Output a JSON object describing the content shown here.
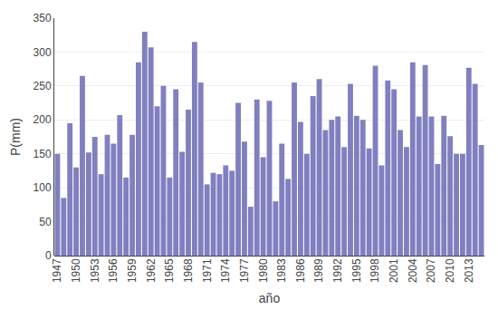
{
  "chart_data": {
    "type": "bar",
    "categories": [
      1947,
      null,
      null,
      1950,
      null,
      null,
      1953,
      null,
      null,
      1956,
      null,
      null,
      1959,
      null,
      null,
      1962,
      null,
      null,
      1965,
      null,
      null,
      1968,
      null,
      null,
      1971,
      null,
      null,
      1974,
      null,
      null,
      1977,
      null,
      null,
      1980,
      null,
      null,
      1983,
      null,
      null,
      1986,
      null,
      null,
      1989,
      null,
      null,
      1992,
      null,
      null,
      1995,
      null,
      null,
      1998,
      null,
      null,
      2001,
      null,
      null,
      2004,
      null,
      null,
      2007,
      null,
      null,
      2010,
      null,
      null,
      2013,
      null,
      null
    ],
    "values": [
      150,
      85,
      195,
      130,
      265,
      152,
      175,
      120,
      178,
      165,
      207,
      115,
      178,
      285,
      330,
      307,
      220,
      250,
      115,
      245,
      153,
      215,
      315,
      255,
      105,
      122,
      120,
      133,
      125,
      225,
      168,
      72,
      230,
      145,
      228,
      80,
      165,
      113,
      255,
      197,
      150,
      235,
      260,
      185,
      200,
      205,
      160,
      253,
      206,
      200,
      158,
      280,
      133,
      258,
      245,
      185,
      160,
      285,
      205,
      281,
      205,
      135,
      206,
      176,
      150,
      150,
      277,
      253,
      163
    ],
    "color": "#8080c0",
    "xlabel": "año",
    "ylabel": "P(mm)",
    "ylim": [
      0,
      350
    ],
    "yticks": [
      0,
      50,
      100,
      150,
      200,
      250,
      300,
      350
    ],
    "grid": true
  }
}
